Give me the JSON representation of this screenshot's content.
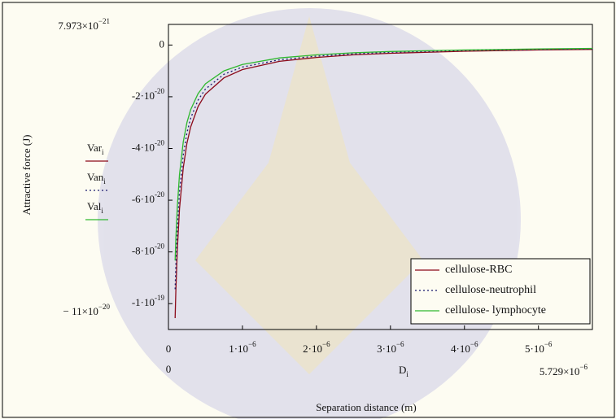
{
  "chart_data": {
    "type": "line",
    "x_label": "Separation distance (m)",
    "y_label": "Attractive force (J)",
    "x_variable": {
      "text": "D",
      "sub": "i"
    },
    "x_end_labels": [
      "0",
      {
        "text": "5.729×10",
        "exp": "−6"
      }
    ],
    "y_end_labels": [
      {
        "text": "7.973×10",
        "exp": "−21"
      },
      {
        "text": "− 11×10",
        "exp": "−20"
      }
    ],
    "xlim": [
      0,
      5.729e-06
    ],
    "ylim": [
      -1.1e-19,
      7.973e-21
    ],
    "xticks": [
      0,
      {
        "value": 1e-06,
        "label": "1·10",
        "exp": "−6"
      },
      {
        "value": 2e-06,
        "label": "2·10",
        "exp": "−6"
      },
      {
        "value": 3e-06,
        "label": "3·10",
        "exp": "−6"
      },
      {
        "value": 4e-06,
        "label": "4·10",
        "exp": "−6"
      },
      {
        "value": 5e-06,
        "label": "5·10",
        "exp": "−6"
      }
    ],
    "yticks": [
      0,
      {
        "value": -2e-20,
        "label": "-2·10",
        "exp": "-20"
      },
      {
        "value": -4e-20,
        "label": "-4·10",
        "exp": "-20"
      },
      {
        "value": -6e-20,
        "label": "-6·10",
        "exp": "-20"
      },
      {
        "value": -8e-20,
        "label": "-8·10",
        "exp": "-20"
      },
      {
        "value": -1e-19,
        "label": "-1·10",
        "exp": "-19"
      }
    ],
    "x": [
      9e-08,
      1e-07,
      1.2e-07,
      1.5e-07,
      2e-07,
      2.5e-07,
      3e-07,
      4e-07,
      5e-07,
      7.5e-07,
      1e-06,
      1.5e-06,
      2e-06,
      2.5e-06,
      3e-06,
      4e-06,
      5e-06,
      5.729e-06
    ],
    "series": [
      {
        "name": "cellulose-RBC",
        "variable": {
          "text": "Var",
          "sub": "i"
        },
        "color": "#8b0a1a",
        "dash": "none",
        "values": [
          -1.056e-19,
          -9.5e-20,
          -7.92e-20,
          -6.33e-20,
          -4.75e-20,
          -3.8e-20,
          -3.17e-20,
          -2.38e-20,
          -1.9e-20,
          -1.27e-20,
          -9.5e-21,
          -6.3e-21,
          -4.8e-21,
          -3.8e-21,
          -3.2e-21,
          -2.4e-21,
          -1.9e-21,
          -1.7e-21
        ]
      },
      {
        "name": "cellulose-neutrophil",
        "variable": {
          "text": "Van",
          "sub": "i"
        },
        "color": "#1a1a6e",
        "dash": "2 3",
        "values": [
          -9.44e-20,
          -8.5e-20,
          -7.08e-20,
          -5.67e-20,
          -4.25e-20,
          -3.4e-20,
          -2.83e-20,
          -2.13e-20,
          -1.7e-20,
          -1.13e-20,
          -8.5e-21,
          -5.7e-21,
          -4.3e-21,
          -3.4e-21,
          -2.8e-21,
          -2.1e-21,
          -1.7e-21,
          -1.5e-21
        ]
      },
      {
        "name": "cellulose- lymphocyte",
        "variable": {
          "text": "Val",
          "sub": "i"
        },
        "color": "#2fb82f",
        "dash": "none",
        "values": [
          -8.33e-20,
          -7.5e-20,
          -6.25e-20,
          -5e-20,
          -3.75e-20,
          -3e-20,
          -2.5e-20,
          -1.88e-20,
          -1.5e-20,
          -1e-20,
          -7.5e-21,
          -5e-21,
          -3.8e-21,
          -3e-21,
          -2.5e-21,
          -1.9e-21,
          -1.5e-21,
          -1.3e-21
        ]
      }
    ],
    "legend": "lower right"
  }
}
